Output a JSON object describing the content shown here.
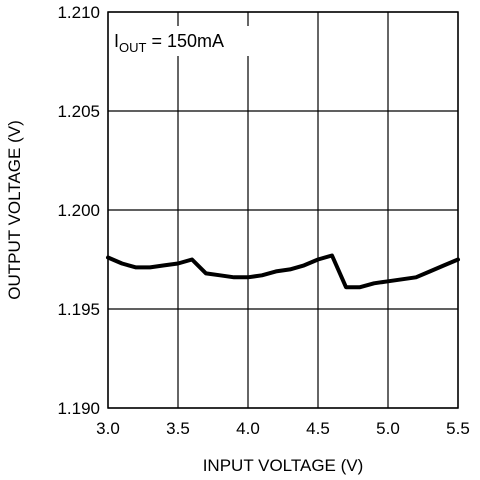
{
  "chart_data": {
    "type": "line",
    "xlabel": "INPUT VOLTAGE (V)",
    "ylabel": "OUTPUT VOLTAGE (V)",
    "xlim": [
      3.0,
      5.5
    ],
    "ylim": [
      1.19,
      1.21
    ],
    "x_ticks": [
      "3.0",
      "3.5",
      "4.0",
      "4.5",
      "5.0",
      "5.5"
    ],
    "y_ticks": [
      "1.190",
      "1.195",
      "1.200",
      "1.205",
      "1.210"
    ],
    "grid": true,
    "annotation": {
      "main": "I",
      "subscript": "OUT",
      "rest": " = 150mA"
    },
    "series": [
      {
        "color": "#000000",
        "x": [
          3.0,
          3.1,
          3.2,
          3.3,
          3.4,
          3.5,
          3.6,
          3.7,
          3.8,
          3.9,
          4.0,
          4.1,
          4.2,
          4.3,
          4.4,
          4.5,
          4.6,
          4.7,
          4.8,
          4.9,
          5.0,
          5.1,
          5.2,
          5.3,
          5.4,
          5.5
        ],
        "y": [
          1.1976,
          1.1973,
          1.1971,
          1.1971,
          1.1972,
          1.1973,
          1.1975,
          1.1968,
          1.1967,
          1.1966,
          1.1966,
          1.1967,
          1.1969,
          1.197,
          1.1972,
          1.1975,
          1.1977,
          1.1961,
          1.1961,
          1.1963,
          1.1964,
          1.1965,
          1.1966,
          1.1969,
          1.1972,
          1.1975
        ]
      }
    ]
  }
}
